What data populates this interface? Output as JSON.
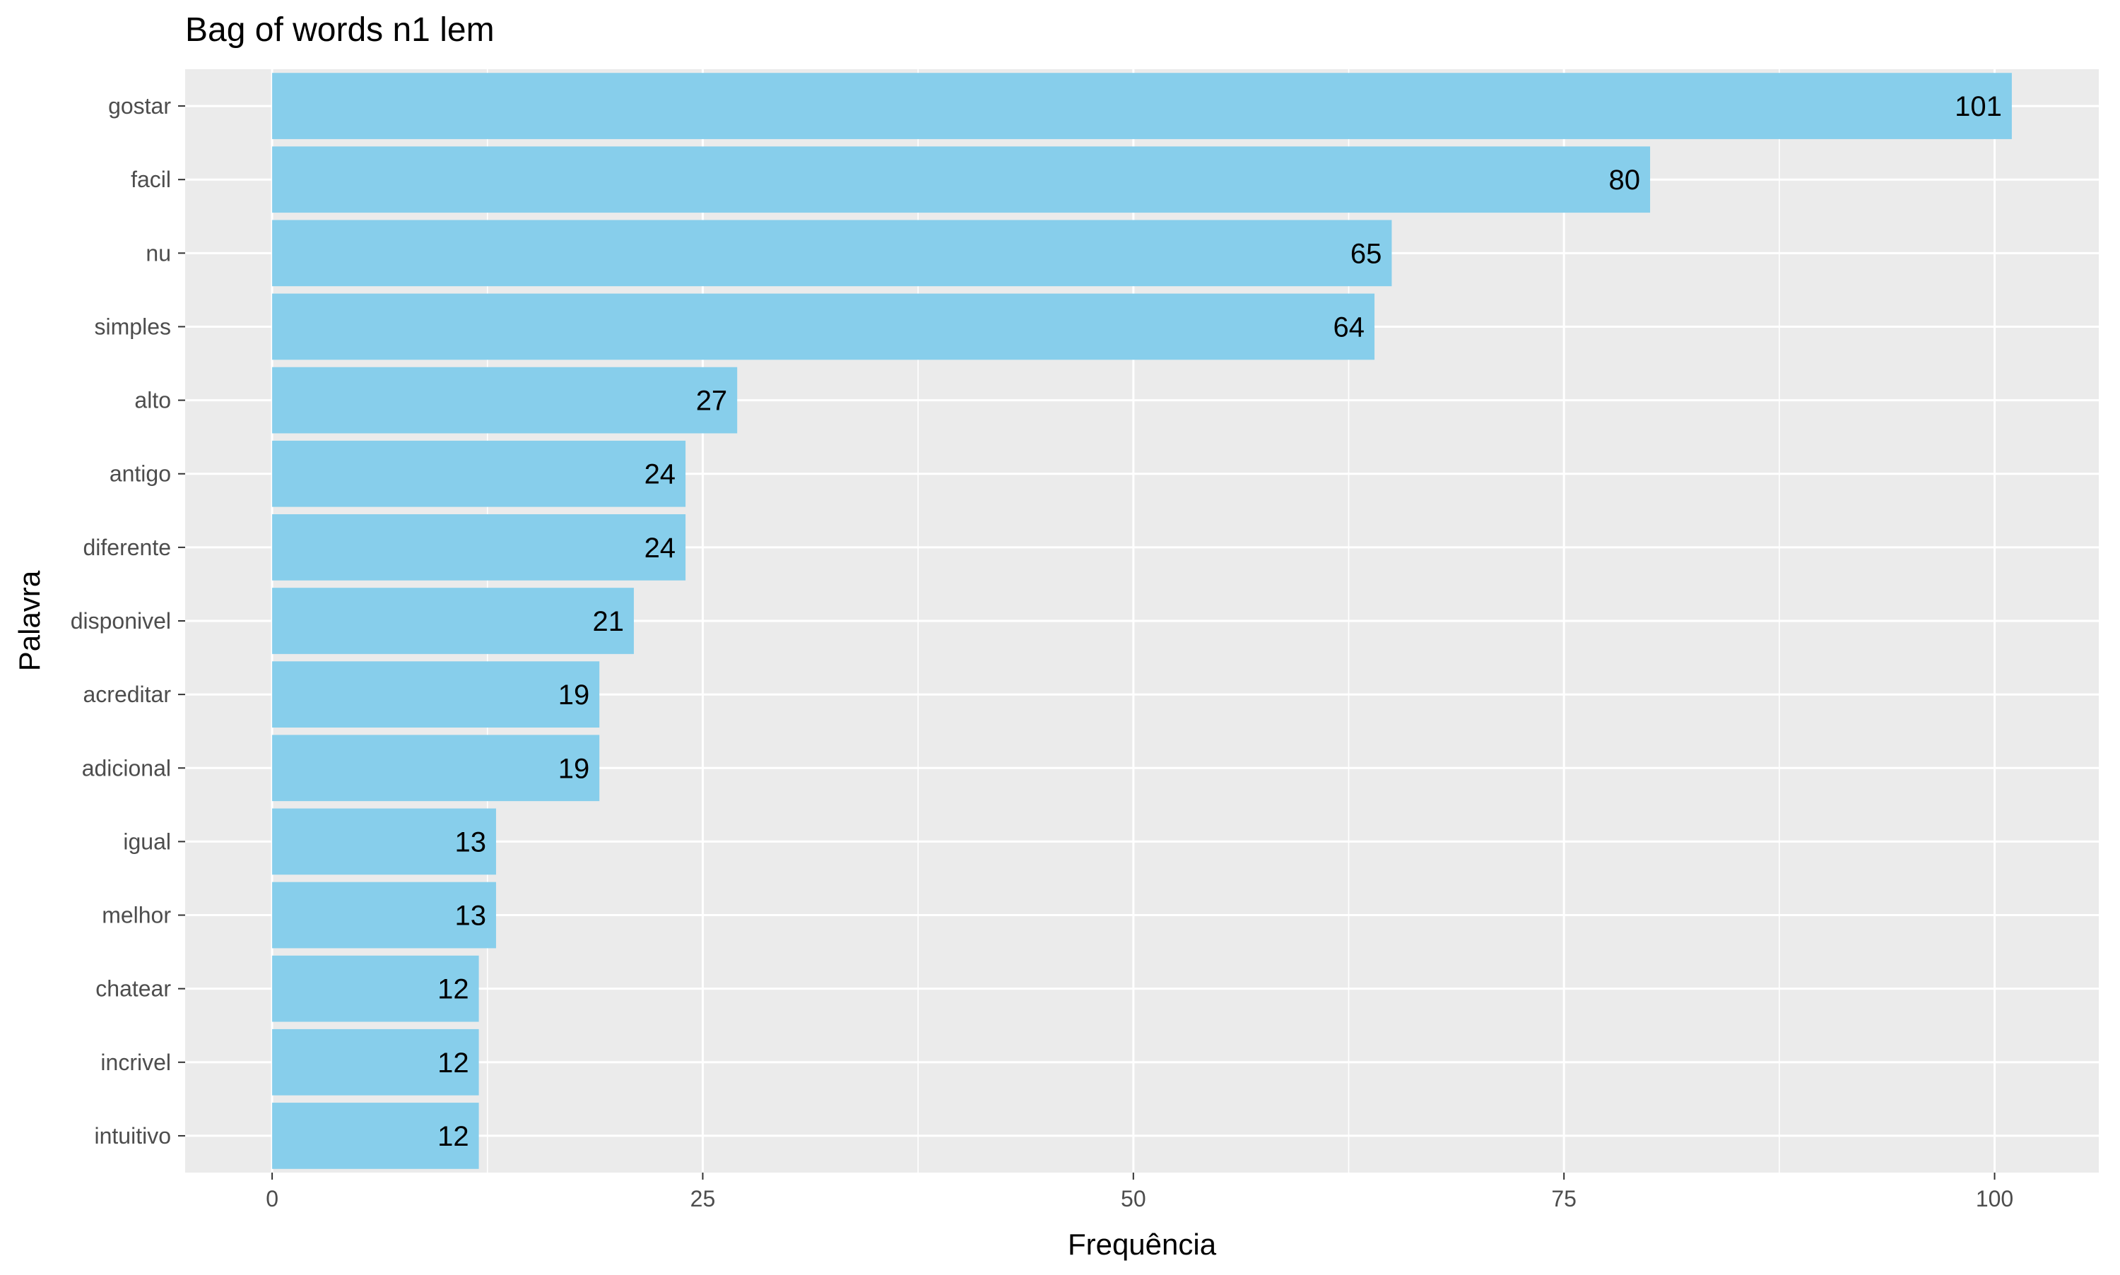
{
  "chart_data": {
    "type": "bar",
    "orientation": "horizontal",
    "title": "Bag of words n1 lem",
    "xlabel": "Frequência",
    "ylabel": "Palavra",
    "categories": [
      "gostar",
      "facil",
      "nu",
      "simples",
      "alto",
      "antigo",
      "diferente",
      "disponivel",
      "acreditar",
      "adicional",
      "igual",
      "melhor",
      "chatear",
      "incrivel",
      "intuitivo"
    ],
    "values": [
      101,
      80,
      65,
      64,
      27,
      24,
      24,
      21,
      19,
      19,
      13,
      13,
      12,
      12,
      12
    ],
    "data_labels": [
      "101",
      "80",
      "65",
      "64",
      "27",
      "24",
      "24",
      "21",
      "19",
      "19",
      "13",
      "13",
      "12",
      "12",
      "12"
    ],
    "xticks": [
      0,
      25,
      50,
      75,
      100
    ],
    "xtick_labels": [
      "0",
      "25",
      "50",
      "75",
      "100"
    ],
    "xlim": [
      -5.05,
      106.05
    ],
    "grid": true,
    "legend": "none",
    "colors": {
      "bar": "#87CEEB",
      "panel_background": "#EBEBEB",
      "grid_line": "#FFFFFF",
      "tick_text": "#4D4D4D",
      "tick_mark": "#333333"
    }
  }
}
